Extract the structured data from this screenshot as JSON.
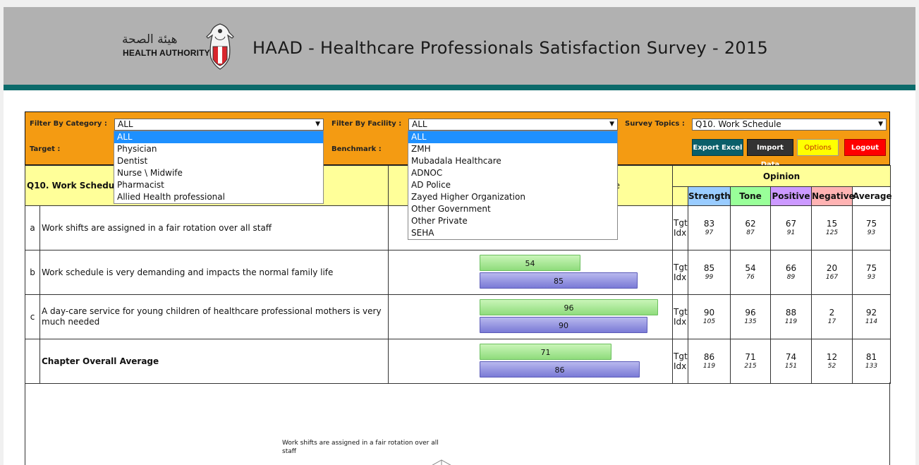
{
  "header": {
    "logo_arabic": "هيئة الصحة",
    "logo_english": "HEALTH AUTHORITY",
    "title": "HAAD - Healthcare Professionals Satisfaction Survey - 2015"
  },
  "filters": {
    "category_label": "Filter By Category :",
    "category_value": "ALL",
    "facility_label": "Filter By Facility :",
    "facility_value": "ALL",
    "topics_label": "Survey Topics :",
    "topics_value": "Q10. Work Schedule",
    "target_label": "Target :",
    "benchmark_label": "Benchmark :"
  },
  "buttons": {
    "export_excel": "Export Excel",
    "import_data": "Import Data",
    "options": "Options",
    "logout": "Logout"
  },
  "colors": {
    "orange_bar": "#f49b12",
    "strength": "#99ccff",
    "tone": "#99ff99",
    "positive": "#cc99ff",
    "negative": "#ffb3b3",
    "average": "#ffffff",
    "export_btn": "#0a5f6a",
    "import_btn": "#333333",
    "options_btn": "#ffff00",
    "logout_btn": "#ff0000"
  },
  "category_dropdown": {
    "options": [
      "ALL",
      "Physician",
      "Dentist",
      "Nurse \\ Midwife",
      "Pharmacist",
      "Allied Health professional"
    ],
    "selected": "ALL"
  },
  "facility_dropdown": {
    "options": [
      "ALL",
      "ZMH",
      "Mubadala Healthcare",
      "ADNOC",
      "AD Police",
      "Zayed Higher Organization",
      "Other Government",
      "Other Private",
      "SEHA"
    ],
    "selected": "ALL"
  },
  "table": {
    "section_title": "Q10. Work Schedu",
    "header_fragment": "e",
    "opinion_label": "Opinion",
    "columns": [
      "Strength",
      "Tone",
      "Positive",
      "Negative",
      "Average"
    ],
    "tgt_label": "Tgt",
    "idx_label": "Idx",
    "rows": [
      {
        "letter": "a",
        "text": "Work shifts are assigned in a fair rotation over all staff",
        "green": null,
        "blue": null,
        "green_label": "",
        "blue_label": "",
        "tgt": [
          "83",
          "62",
          "67",
          "15",
          "75"
        ],
        "idx": [
          "97",
          "87",
          "91",
          "125",
          "93"
        ]
      },
      {
        "letter": "b",
        "text": "Work schedule is very demanding and impacts the normal family life",
        "green": 54,
        "blue": 85,
        "green_label": "54",
        "blue_label": "85",
        "tgt": [
          "85",
          "54",
          "66",
          "20",
          "75"
        ],
        "idx": [
          "99",
          "76",
          "89",
          "167",
          "93"
        ]
      },
      {
        "letter": "c",
        "text": "A day-care service for young children of healthcare professional mothers is very much needed",
        "green": 96,
        "blue": 90,
        "green_label": "96",
        "blue_label": "90",
        "tgt": [
          "90",
          "96",
          "88",
          "2",
          "92"
        ],
        "idx": [
          "105",
          "135",
          "119",
          "17",
          "114"
        ]
      },
      {
        "letter": "",
        "text": "Chapter Overall Average",
        "green": 71,
        "blue": 86,
        "green_label": "71",
        "blue_label": "86",
        "tgt": [
          "86",
          "71",
          "74",
          "12",
          "81"
        ],
        "idx": [
          "119",
          "215",
          "151",
          "52",
          "133"
        ]
      }
    ]
  },
  "chart_caption": "Work shifts are assigned in a fair rotation over all staff"
}
